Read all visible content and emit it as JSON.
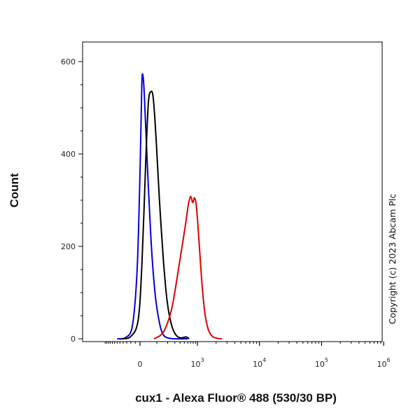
{
  "copyright": "Copyright (c) 2023 Abcam Plc",
  "chart_data": {
    "type": "line",
    "title": "",
    "xlabel": "cux1 - Alexa Fluor® 488 (530/30 BP)",
    "ylabel": "Count",
    "x_scale": "biexponential",
    "x_ticks": [
      {
        "value": 0,
        "base": "0",
        "exp": ""
      },
      {
        "value": 1000,
        "base": "10",
        "exp": "3"
      },
      {
        "value": 10000,
        "base": "10",
        "exp": "4"
      },
      {
        "value": 100000,
        "base": "10",
        "exp": "5"
      },
      {
        "value": 1000000,
        "base": "10",
        "exp": "6"
      }
    ],
    "ylim": [
      0,
      650
    ],
    "y_ticks": [
      0,
      200,
      400,
      600
    ],
    "grid": false,
    "series": [
      {
        "color": "#0000dd",
        "points": [
          [
            -150,
            0
          ],
          [
            -80,
            3
          ],
          [
            -40,
            30
          ],
          [
            -15,
            150
          ],
          [
            0,
            360
          ],
          [
            8,
            520
          ],
          [
            12,
            572
          ],
          [
            20,
            550
          ],
          [
            30,
            460
          ],
          [
            45,
            330
          ],
          [
            65,
            190
          ],
          [
            90,
            90
          ],
          [
            120,
            35
          ],
          [
            150,
            10
          ],
          [
            200,
            2
          ],
          [
            300,
            0
          ],
          [
            600,
            0
          ]
        ]
      },
      {
        "color": "#000000",
        "points": [
          [
            -120,
            0
          ],
          [
            -50,
            5
          ],
          [
            -10,
            40
          ],
          [
            10,
            160
          ],
          [
            30,
            380
          ],
          [
            45,
            510
          ],
          [
            60,
            535
          ],
          [
            75,
            520
          ],
          [
            95,
            430
          ],
          [
            120,
            300
          ],
          [
            155,
            170
          ],
          [
            195,
            80
          ],
          [
            250,
            30
          ],
          [
            320,
            8
          ],
          [
            420,
            2
          ],
          [
            550,
            4
          ],
          [
            650,
            0
          ]
        ]
      },
      {
        "color": "#dd0000",
        "points": [
          [
            80,
            0
          ],
          [
            130,
            8
          ],
          [
            180,
            25
          ],
          [
            260,
            70
          ],
          [
            380,
            160
          ],
          [
            520,
            240
          ],
          [
            620,
            290
          ],
          [
            700,
            308
          ],
          [
            780,
            295
          ],
          [
            860,
            305
          ],
          [
            940,
            290
          ],
          [
            1020,
            245
          ],
          [
            1100,
            180
          ],
          [
            1200,
            110
          ],
          [
            1320,
            55
          ],
          [
            1500,
            20
          ],
          [
            1750,
            5
          ],
          [
            2100,
            1
          ],
          [
            2500,
            0
          ]
        ]
      }
    ]
  }
}
